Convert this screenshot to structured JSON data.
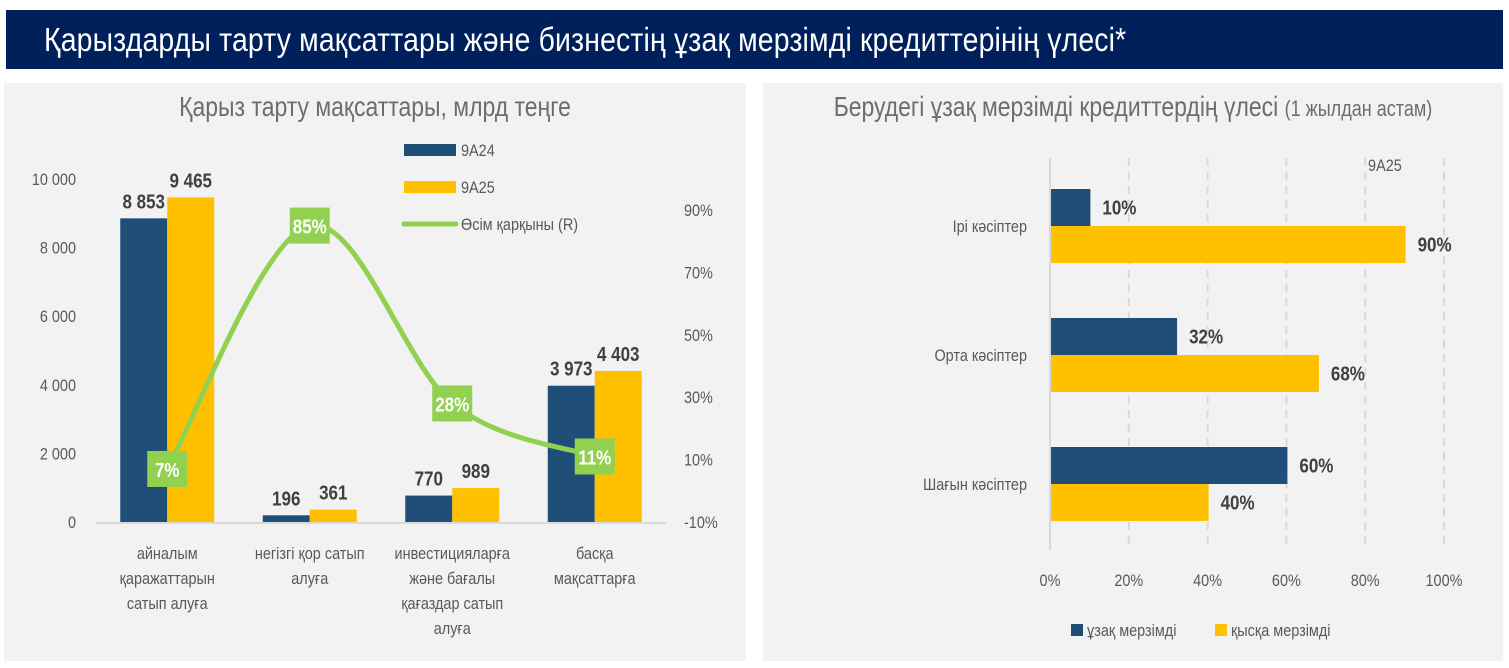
{
  "header": {
    "title": "Қарыздарды тарту мақсаттары және бизнестің ұзақ мерзімді кредиттерінің үлесі*"
  },
  "colors": {
    "banner": "#00205b",
    "navy": "#1f4e79",
    "gold": "#ffc000",
    "green": "#92d050",
    "panel": "#f2f2f2",
    "text": "#404040"
  },
  "chart_data": [
    {
      "type": "bar",
      "title": "Қарыз тарту мақсаттары, млрд теңге",
      "categories": [
        [
          "айналым",
          "қаражаттарын",
          "сатып алуға"
        ],
        [
          "негізгі қор сатып",
          "алуға"
        ],
        [
          "инвестицияларға",
          "және бағалы",
          "қағаздар сатып",
          "алуға"
        ],
        [
          "басқа",
          "мақсаттарға"
        ]
      ],
      "series": [
        {
          "name": "9А24",
          "type": "bar",
          "axis": "left",
          "values": [
            8853,
            196,
            770,
            3973
          ],
          "labels": [
            "8 853",
            "196",
            "770",
            "3 973"
          ]
        },
        {
          "name": "9А25",
          "type": "bar",
          "axis": "left",
          "values": [
            9465,
            361,
            989,
            4403
          ],
          "labels": [
            "9 465",
            "361",
            "989",
            "4 403"
          ]
        },
        {
          "name": "Өсім қарқыны (R)",
          "type": "line",
          "axis": "right",
          "values": [
            7,
            85,
            28,
            11
          ],
          "labels": [
            "7%",
            "85%",
            "28%",
            "11%"
          ]
        }
      ],
      "y_left": {
        "range": [
          0,
          10000
        ],
        "ticks": [
          0,
          2000,
          4000,
          6000,
          8000,
          10000
        ],
        "tick_labels": [
          "0",
          "2 000",
          "4 000",
          "6 000",
          "8 000",
          "10 000"
        ]
      },
      "y_right": {
        "range": [
          -10,
          100
        ],
        "ticks": [
          -10,
          10,
          30,
          50,
          70,
          90
        ],
        "tick_labels": [
          "-10%",
          "10%",
          "30%",
          "50%",
          "70%",
          "90%"
        ]
      },
      "legend": {
        "placement": "top-center",
        "entries": [
          "9А24",
          "9А25",
          "Өсім қарқыны (R)"
        ]
      },
      "grid": false
    },
    {
      "type": "bar",
      "orientation": "horizontal",
      "title": "Берудегі ұзақ мерзімді кредиттердің үлесі",
      "subtitle": "(1 жылдан астам)",
      "annotation": "9А25",
      "categories": [
        "Ірі кәсіптер",
        "Орта кәсіптер",
        "Шағын кәсіптер"
      ],
      "series": [
        {
          "name": "ұзақ мерзімді",
          "values": [
            10,
            32,
            60
          ],
          "labels": [
            "10%",
            "32%",
            "60%"
          ]
        },
        {
          "name": "қысқа мерзімді",
          "values": [
            90,
            68,
            40
          ],
          "labels": [
            "90%",
            "68%",
            "40%"
          ]
        }
      ],
      "x_axis": {
        "range": [
          0,
          100
        ],
        "ticks": [
          0,
          20,
          40,
          60,
          80,
          100
        ],
        "tick_labels": [
          "0%",
          "20%",
          "40%",
          "60%",
          "80%",
          "100%"
        ]
      },
      "legend": {
        "placement": "bottom",
        "entries": [
          "ұзақ мерзімді",
          "қысқа мерзімді"
        ]
      },
      "grid": "vertical-dashed"
    }
  ]
}
